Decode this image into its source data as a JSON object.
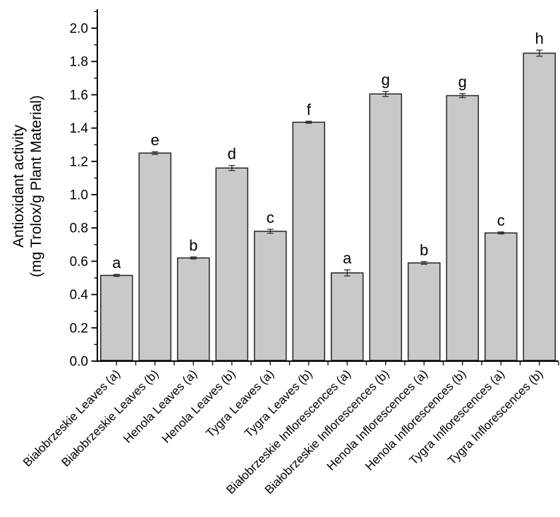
{
  "figure": {
    "background": "#ffffff"
  },
  "chart_data": {
    "type": "bar",
    "title": "",
    "ylabel_line1": "Antioxidant activity",
    "ylabel_line2": "(mg Trolox/g Plant Material)",
    "xlabel": "",
    "ylim": [
      0,
      2.1
    ],
    "ytick_step": 0.2,
    "ytick_labels": [
      "0.0",
      "0.2",
      "0.4",
      "0.6",
      "0.8",
      "1.0",
      "1.2",
      "1.4",
      "1.6",
      "1.8",
      "2.0"
    ],
    "grid": false,
    "legend": "none",
    "bar_fill": "#c9c9c9",
    "bar_stroke": "#2e2e2e",
    "axis_color": "#000000",
    "error_bar_color": "#2e2e2e",
    "categories": [
      "Białobrzeskie Leaves (a)",
      "Białobrzeskie Leaves (b)",
      "Henola Leaves (a)",
      "Henola Leaves (b)",
      "Tygra Leaves (a)",
      "Tygra Leaves (b)",
      "Białobrzeskie Inflorescences (a)",
      "Białobrzeskie Inflorescences (b)",
      "Henola Inflorescences (a)",
      "Henola Inflorescences (b)",
      "Tygra Inflorescences (a)",
      "Tygra Inflorescences (b)"
    ],
    "values": [
      0.515,
      1.25,
      0.62,
      1.16,
      0.78,
      1.435,
      0.53,
      1.605,
      0.59,
      1.595,
      0.77,
      1.85
    ],
    "errors": [
      0.006,
      0.008,
      0.006,
      0.015,
      0.012,
      0.006,
      0.018,
      0.015,
      0.008,
      0.012,
      0.006,
      0.018
    ],
    "sig_letters": [
      "a",
      "e",
      "b",
      "d",
      "c",
      "f",
      "a",
      "g",
      "b",
      "g",
      "c",
      "h"
    ]
  }
}
